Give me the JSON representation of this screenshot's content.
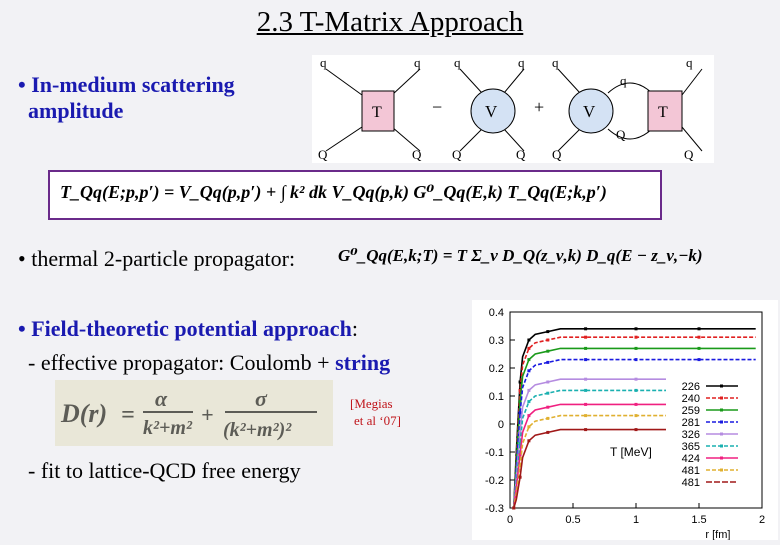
{
  "title": "2.3 T-Matrix Approach",
  "bullets": {
    "b1_line1": "• In-medium scattering",
    "b1_line2": "amplitude",
    "b2": "• thermal 2-particle propagator:",
    "b3_bold": "• Field-theoretic potential approach",
    "b3_colon": ":",
    "b3_sub1_prefix": "- effective propagator: Coulomb + ",
    "b3_sub1_bold": "string",
    "b3_sub2": "- fit to lattice-QCD free energy"
  },
  "citation": {
    "line1": "[Megias",
    "line2": "et al ‘07]"
  },
  "diagram": {
    "T": "T",
    "V": "V",
    "minus": "−",
    "plus": "+",
    "q": "q",
    "Q": "Q"
  },
  "equations": {
    "tmatrix": "T_Qq(E;p,p′) = V_Qq(p,p′) + ∫ k² dk V_Qq(p,k) G⁰_Qq(E,k) T_Qq(E;k,p′)",
    "propagator": "G⁰_Qq(E,k;T) = T Σ_ν D_Q(z_ν,k) D_q(E − z_ν,−k)"
  },
  "chart_data": {
    "type": "line",
    "xlabel": "r [fm]",
    "ylabel": "",
    "xlim": [
      0,
      2
    ],
    "ylim": [
      -0.3,
      0.4
    ],
    "xticks": [
      "0",
      "0.5",
      "1",
      "1.5",
      "2"
    ],
    "yticks": [
      "0.4",
      "0.3",
      "0.2",
      "0.1",
      "0",
      "-0.1",
      "-0.2",
      "-0.3"
    ],
    "legend_title": "T [MeV]",
    "legend_position": "right",
    "x": [
      0.03,
      0.05,
      0.08,
      0.1,
      0.15,
      0.2,
      0.3,
      0.4,
      0.6,
      0.8,
      1.0,
      1.2,
      1.5
    ],
    "series": [
      {
        "name": "226",
        "color": "#000000",
        "plateau": 0.34,
        "values": [
          -0.3,
          -0.1,
          0.15,
          0.24,
          0.3,
          0.32,
          0.33,
          0.34,
          0.34,
          0.34,
          0.34,
          0.34,
          0.34
        ]
      },
      {
        "name": "240",
        "color": "#e02020",
        "plateau": 0.31,
        "values": [
          -0.3,
          -0.12,
          0.12,
          0.21,
          0.27,
          0.29,
          0.3,
          0.31,
          0.31,
          0.31,
          0.31,
          0.31,
          0.31
        ]
      },
      {
        "name": "259",
        "color": "#1a9a1a",
        "plateau": 0.27,
        "values": [
          -0.3,
          -0.14,
          0.08,
          0.17,
          0.23,
          0.25,
          0.26,
          0.27,
          0.27,
          0.27,
          0.27,
          0.27,
          0.27
        ]
      },
      {
        "name": "281",
        "color": "#1a1ae0",
        "plateau": 0.23,
        "values": [
          -0.3,
          -0.16,
          0.04,
          0.13,
          0.19,
          0.21,
          0.22,
          0.23,
          0.23,
          0.23,
          0.23,
          0.23,
          0.23
        ]
      },
      {
        "name": "326",
        "color": "#b58ce0",
        "plateau": 0.16,
        "values": [
          -0.3,
          -0.19,
          -0.03,
          0.06,
          0.12,
          0.14,
          0.15,
          0.16,
          0.16,
          0.16,
          0.16,
          0.16,
          0.16
        ]
      },
      {
        "name": "365",
        "color": "#1ab0b0",
        "plateau": 0.12,
        "values": [
          -0.3,
          -0.21,
          -0.07,
          0.02,
          0.08,
          0.1,
          0.11,
          0.12,
          0.12,
          0.12,
          0.12,
          0.12,
          0.12
        ]
      },
      {
        "name": "424",
        "color": "#f02080",
        "plateau": 0.07,
        "values": [
          -0.3,
          -0.23,
          -0.11,
          -0.03,
          0.03,
          0.05,
          0.06,
          0.07,
          0.07,
          0.07,
          0.07,
          0.07,
          0.07
        ]
      },
      {
        "name": "481",
        "color": "#e0b030",
        "plateau": 0.03,
        "values": [
          -0.3,
          -0.25,
          -0.15,
          -0.07,
          -0.01,
          0.01,
          0.02,
          0.03,
          0.03,
          0.03,
          0.03,
          0.03,
          0.03
        ]
      },
      {
        "name": "",
        "color": "#a01818",
        "plateau": -0.02,
        "values": [
          -0.3,
          -0.27,
          -0.19,
          -0.12,
          -0.06,
          -0.04,
          -0.03,
          -0.02,
          -0.02,
          -0.02,
          -0.02,
          -0.02,
          -0.02
        ]
      }
    ],
    "legend_extra": "481"
  }
}
